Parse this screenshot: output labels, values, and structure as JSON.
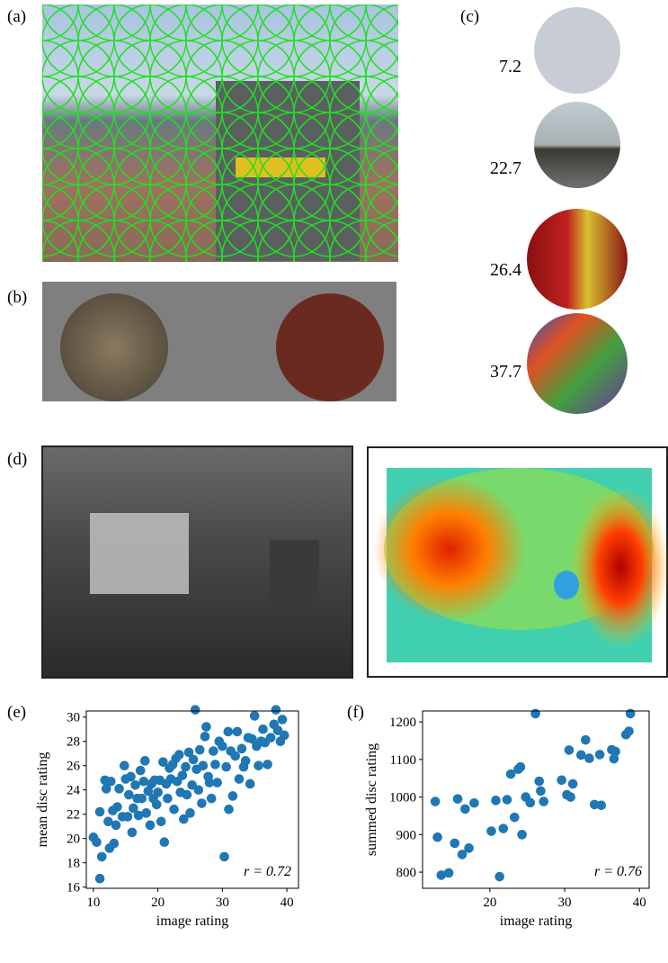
{
  "panel_labels": [
    "(a)",
    "(b)",
    "(c)",
    "(d)",
    "(e)",
    "(f)"
  ],
  "disc_ratings": [
    7.2,
    22.7,
    26.4,
    37.7
  ],
  "chart_data": [
    {
      "type": "scatter",
      "xlabel": "image rating",
      "ylabel": "mean disc rating",
      "annotation": "r = 0.72",
      "color": "#1f77b4",
      "xlim": [
        8.9,
        41.8
      ],
      "ylim": [
        15.9,
        30.5
      ],
      "xticks": [
        10,
        20,
        30,
        40
      ],
      "yticks": [
        16,
        18,
        20,
        22,
        24,
        26,
        28,
        30
      ],
      "x": [
        10,
        10.5,
        11,
        11,
        11.3,
        11.8,
        12,
        12.3,
        12.5,
        12.7,
        13,
        13.2,
        13.5,
        13.7,
        14,
        14.5,
        14.8,
        15,
        15.3,
        15.5,
        15.8,
        16,
        16.2,
        16.5,
        16.8,
        17,
        17.3,
        17.5,
        17.8,
        18,
        18.2,
        18.5,
        18.8,
        19,
        19.3,
        19.5,
        19.8,
        20,
        20.3,
        20.5,
        20.8,
        21,
        21.3,
        21.5,
        21.8,
        22,
        22.3,
        22.5,
        22.8,
        23,
        23.3,
        23.5,
        23.8,
        24,
        24.3,
        24.5,
        24.8,
        25,
        25.3,
        25.5,
        25.8,
        26,
        26.3,
        26.5,
        26.8,
        27,
        27.3,
        27.5,
        27.8,
        28,
        28.3,
        28.6,
        28.9,
        29.2,
        29.5,
        30,
        30.3,
        30.6,
        30.9,
        31,
        31.3,
        31.6,
        32,
        32.3,
        32.6,
        33,
        33.3,
        33.6,
        34,
        34.3,
        34.6,
        35,
        35.3,
        35.6,
        36,
        36.3,
        36.6,
        37,
        37.5,
        38,
        38.3,
        38.6,
        39,
        39.3,
        39.6
      ],
      "values": [
        20.1,
        19.7,
        16.7,
        22.2,
        18.5,
        24.8,
        24.1,
        21.4,
        19.2,
        24.7,
        22.3,
        19.6,
        21.1,
        22.6,
        24.1,
        21.8,
        26,
        24.9,
        21.8,
        23.6,
        25.1,
        20.5,
        22.5,
        24.4,
        23.3,
        21.9,
        25.6,
        23.3,
        24.7,
        26.4,
        22.1,
        23.9,
        21.1,
        24.5,
        23.3,
        24.8,
        22.8,
        23.8,
        24.8,
        21.4,
        26.3,
        19.7,
        24.5,
        23.3,
        25.8,
        24.9,
        26.1,
        22.4,
        26.6,
        24.7,
        26.9,
        23.8,
        25.2,
        21.6,
        25.9,
        23.6,
        27.1,
        22.1,
        24.4,
        26.5,
        30.6,
        25.7,
        24,
        27.3,
        22.9,
        26,
        28.4,
        29.2,
        25.1,
        24.6,
        23.3,
        27.2,
        26.1,
        24.6,
        28,
        27.6,
        18.5,
        25.9,
        28.8,
        22.4,
        27.2,
        23.5,
        26.8,
        28.8,
        24.9,
        27.4,
        25.9,
        26.4,
        28.3,
        24.5,
        28.2,
        30.1,
        27.6,
        26,
        28,
        29,
        27.9,
        26.1,
        28.3,
        29.4,
        30.6,
        28.9,
        28,
        29.8,
        28.5
      ]
    },
    {
      "type": "scatter",
      "xlabel": "image rating",
      "ylabel": "summed disc rating",
      "annotation": "r = 0.76",
      "color": "#1f77b4",
      "xlim": [
        11,
        41.3
      ],
      "ylim": [
        757,
        1229
      ],
      "xticks": [
        20,
        30,
        40
      ],
      "yticks": [
        800,
        900,
        1000,
        1100,
        1200
      ],
      "x": [
        12.7,
        13,
        13.5,
        14.5,
        15.3,
        15.7,
        16.3,
        16.7,
        17.2,
        17.9,
        20.2,
        20.8,
        21.3,
        21.8,
        22.3,
        22.8,
        23.3,
        23.8,
        24.1,
        24.3,
        24.8,
        25.4,
        26.1,
        26.6,
        26.8,
        27.2,
        29.6,
        30.3,
        30.6,
        30.8,
        31.1,
        32.2,
        32.8,
        33.3,
        34,
        34.7,
        34.9,
        36.3,
        36.6,
        36.8,
        38.2,
        38.6,
        38.8
      ],
      "values": [
        988,
        893,
        792,
        798,
        877,
        995,
        847,
        968,
        864,
        984,
        909,
        991,
        788,
        916,
        993,
        1061,
        946,
        1074,
        1080,
        900,
        1000,
        985,
        1222,
        1042,
        1016,
        988,
        1045,
        1006,
        1125,
        1000,
        1035,
        1112,
        1152,
        1103,
        980,
        1113,
        978,
        1126,
        1102,
        1121,
        1166,
        1175,
        1222
      ]
    }
  ]
}
